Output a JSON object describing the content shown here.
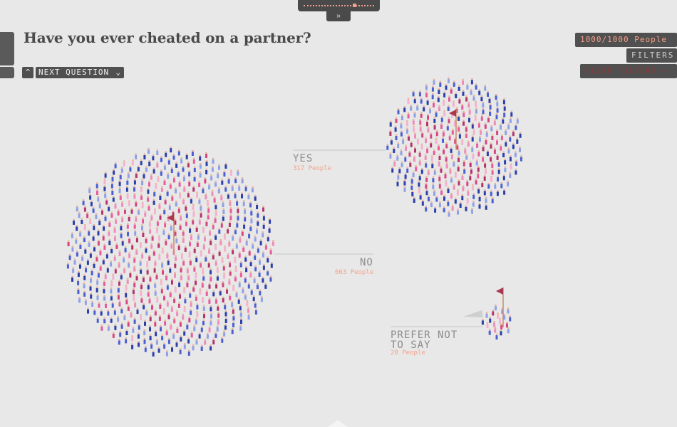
{
  "question": {
    "title": "Have you ever cheated on a partner?"
  },
  "nav": {
    "next_label": "NEXT QUESTION",
    "prev_icon": "chevron-up-icon",
    "next_icon": "chevron-down-icon"
  },
  "top_panel": {
    "toggle_icon": "double-chevron-down-icon"
  },
  "controls": {
    "people_count": "1000/1000 People",
    "filters_label": "FILTERS",
    "clear_filters_label": "CLEAR FILTERS ×"
  },
  "colors": {
    "background": "#e8e8e8",
    "dark": "#4a4a4a",
    "accent_salmon": "#f4a088",
    "clear_red": "#8a3a3a",
    "person_palette": [
      "#2c3fa8",
      "#4a5fd0",
      "#8fa0e6",
      "#f08cb8",
      "#e85a9a",
      "#d6457f",
      "#f7b1cf",
      "#b5336b"
    ]
  },
  "chart_data": {
    "type": "scatter",
    "title": "Have you ever cheated on a partner?",
    "total": 1000,
    "groups": [
      {
        "label": "YES",
        "count_label": "317 People",
        "count": 317
      },
      {
        "label": "NO",
        "count_label": "663 People",
        "count": 663
      },
      {
        "label": "PREFER NOT TO SAY",
        "count_label": "20 People",
        "count": 20
      }
    ]
  }
}
